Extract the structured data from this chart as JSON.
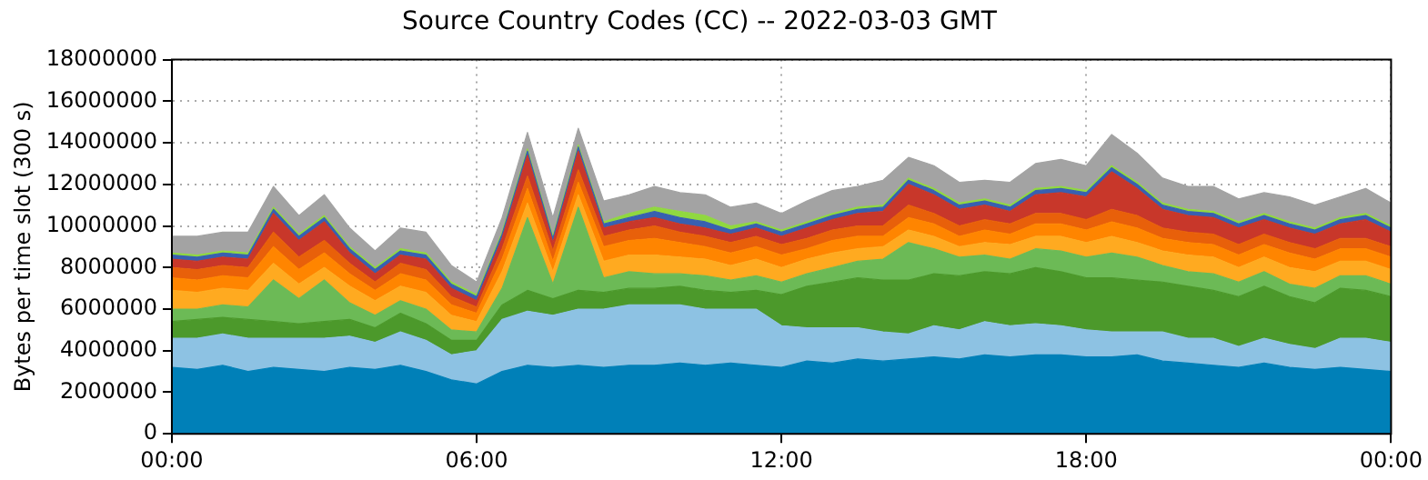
{
  "chart_data": {
    "type": "area",
    "title": "Source Country Codes (CC) -- 2022-03-03 GMT",
    "ylabel": "Bytes per time slot (300 s)",
    "stacked": true,
    "grid": true,
    "x": [
      0,
      0.5,
      1,
      1.5,
      2,
      2.5,
      3,
      3.5,
      4,
      4.5,
      5,
      5.5,
      6,
      6.5,
      7,
      7.5,
      8,
      8.5,
      9,
      9.5,
      10,
      10.5,
      11,
      11.5,
      12,
      12.5,
      13,
      13.5,
      14,
      14.5,
      15,
      15.5,
      16,
      16.5,
      17,
      17.5,
      18,
      18.5,
      19,
      19.5,
      20,
      20.5,
      21,
      21.5,
      22,
      22.5,
      23,
      23.5,
      24
    ],
    "xlim": [
      0,
      24
    ],
    "xticks": [
      {
        "value": 0,
        "label": "00:00"
      },
      {
        "value": 6,
        "label": "06:00"
      },
      {
        "value": 12,
        "label": "12:00"
      },
      {
        "value": 18,
        "label": "18:00"
      },
      {
        "value": 24,
        "label": "00:00"
      }
    ],
    "ylim": [
      0,
      18000000
    ],
    "yticks": [
      0,
      2000000,
      4000000,
      6000000,
      8000000,
      10000000,
      12000000,
      14000000,
      16000000,
      18000000
    ],
    "series": [
      {
        "color": "#0080b8",
        "values": [
          3200000.0,
          3100000.0,
          3300000.0,
          3000000.0,
          3200000.0,
          3100000.0,
          3000000.0,
          3200000.0,
          3100000.0,
          3300000.0,
          3000000.0,
          2600000.0,
          2400000.0,
          3000000.0,
          3300000.0,
          3200000.0,
          3300000.0,
          3200000.0,
          3300000.0,
          3300000.0,
          3400000.0,
          3300000.0,
          3400000.0,
          3300000.0,
          3200000.0,
          3500000.0,
          3400000.0,
          3600000.0,
          3500000.0,
          3600000.0,
          3700000.0,
          3600000.0,
          3800000.0,
          3700000.0,
          3800000.0,
          3800000.0,
          3700000.0,
          3700000.0,
          3800000.0,
          3500000.0,
          3400000.0,
          3300000.0,
          3200000.0,
          3400000.0,
          3200000.0,
          3100000.0,
          3200000.0,
          3100000.0,
          3000000.0
        ]
      },
      {
        "color": "#8dc2e3",
        "values": [
          1400000.0,
          1500000.0,
          1500000.0,
          1600000.0,
          1400000.0,
          1500000.0,
          1600000.0,
          1500000.0,
          1300000.0,
          1600000.0,
          1500000.0,
          1200000.0,
          1600000.0,
          2500000.0,
          2600000.0,
          2500000.0,
          2700000.0,
          2800000.0,
          2900000.0,
          2900000.0,
          2800000.0,
          2700000.0,
          2600000.0,
          2700000.0,
          2000000.0,
          1600000.0,
          1700000.0,
          1500000.0,
          1400000.0,
          1200000.0,
          1500000.0,
          1400000.0,
          1600000.0,
          1500000.0,
          1500000.0,
          1400000.0,
          1300000.0,
          1200000.0,
          1100000.0,
          1400000.0,
          1200000.0,
          1300000.0,
          1000000.0,
          1200000.0,
          1100000.0,
          1000000.0,
          1400000.0,
          1500000.0,
          1400000.0
        ]
      },
      {
        "color": "#4c992b",
        "values": [
          800000.0,
          900000.0,
          800000.0,
          900000.0,
          800000.0,
          700000.0,
          800000.0,
          800000.0,
          700000.0,
          900000.0,
          800000.0,
          700000.0,
          500000.0,
          700000.0,
          1000000.0,
          800000.0,
          900000.0,
          800000.0,
          800000.0,
          800000.0,
          900000.0,
          900000.0,
          800000.0,
          900000.0,
          1500000.0,
          2000000.0,
          2200000.0,
          2400000.0,
          2500000.0,
          2600000.0,
          2500000.0,
          2600000.0,
          2400000.0,
          2500000.0,
          2700000.0,
          2600000.0,
          2500000.0,
          2600000.0,
          2500000.0,
          2400000.0,
          2500000.0,
          2300000.0,
          2400000.0,
          2500000.0,
          2300000.0,
          2200000.0,
          2400000.0,
          2300000.0,
          2200000.0
        ]
      },
      {
        "color": "#6cba56",
        "values": [
          600000.0,
          500000.0,
          600000.0,
          600000.0,
          2000000.0,
          1200000.0,
          2000000.0,
          800000.0,
          600000.0,
          600000.0,
          700000.0,
          500000.0,
          400000.0,
          800000.0,
          3500000.0,
          700000.0,
          4000000.0,
          700000.0,
          800000.0,
          700000.0,
          600000.0,
          700000.0,
          600000.0,
          700000.0,
          600000.0,
          600000.0,
          700000.0,
          800000.0,
          1000000.0,
          1800000.0,
          1200000.0,
          900000.0,
          800000.0,
          700000.0,
          900000.0,
          1000000.0,
          1000000.0,
          1200000.0,
          1100000.0,
          800000.0,
          700000.0,
          800000.0,
          700000.0,
          700000.0,
          600000.0,
          700000.0,
          600000.0,
          700000.0,
          600000.0
        ]
      },
      {
        "color": "#ffaa20",
        "values": [
          900000.0,
          800000.0,
          800000.0,
          800000.0,
          800000.0,
          700000.0,
          600000.0,
          800000.0,
          700000.0,
          700000.0,
          800000.0,
          700000.0,
          500000.0,
          800000.0,
          700000.0,
          600000.0,
          600000.0,
          800000.0,
          800000.0,
          900000.0,
          800000.0,
          800000.0,
          700000.0,
          800000.0,
          700000.0,
          700000.0,
          700000.0,
          600000.0,
          600000.0,
          600000.0,
          600000.0,
          500000.0,
          600000.0,
          700000.0,
          600000.0,
          700000.0,
          700000.0,
          800000.0,
          700000.0,
          700000.0,
          800000.0,
          800000.0,
          700000.0,
          700000.0,
          800000.0,
          800000.0,
          700000.0,
          700000.0,
          700000.0
        ]
      },
      {
        "color": "#ff8500",
        "values": [
          600000.0,
          600000.0,
          600000.0,
          600000.0,
          800000.0,
          700000.0,
          700000.0,
          600000.0,
          500000.0,
          600000.0,
          600000.0,
          500000.0,
          400000.0,
          600000.0,
          700000.0,
          500000.0,
          600000.0,
          700000.0,
          700000.0,
          800000.0,
          700000.0,
          600000.0,
          600000.0,
          600000.0,
          600000.0,
          500000.0,
          600000.0,
          600000.0,
          500000.0,
          600000.0,
          600000.0,
          500000.0,
          600000.0,
          500000.0,
          600000.0,
          600000.0,
          600000.0,
          700000.0,
          700000.0,
          600000.0,
          600000.0,
          600000.0,
          600000.0,
          600000.0,
          700000.0,
          600000.0,
          600000.0,
          600000.0,
          600000.0
        ]
      },
      {
        "color": "#e8600a",
        "values": [
          500000.0,
          500000.0,
          500000.0,
          500000.0,
          700000.0,
          600000.0,
          600000.0,
          500000.0,
          400000.0,
          500000.0,
          500000.0,
          400000.0,
          300000.0,
          500000.0,
          600000.0,
          500000.0,
          600000.0,
          500000.0,
          500000.0,
          600000.0,
          500000.0,
          500000.0,
          500000.0,
          500000.0,
          500000.0,
          500000.0,
          500000.0,
          500000.0,
          500000.0,
          600000.0,
          500000.0,
          500000.0,
          500000.0,
          500000.0,
          500000.0,
          500000.0,
          500000.0,
          600000.0,
          600000.0,
          500000.0,
          500000.0,
          500000.0,
          500000.0,
          500000.0,
          500000.0,
          500000.0,
          500000.0,
          500000.0,
          500000.0
        ]
      },
      {
        "color": "#c8372a",
        "values": [
          400000.0,
          400000.0,
          400000.0,
          400000.0,
          900000.0,
          800000.0,
          900000.0,
          500000.0,
          400000.0,
          400000.0,
          500000.0,
          400000.0,
          300000.0,
          500000.0,
          1000000.0,
          400000.0,
          900000.0,
          400000.0,
          400000.0,
          400000.0,
          400000.0,
          400000.0,
          400000.0,
          400000.0,
          400000.0,
          500000.0,
          500000.0,
          600000.0,
          700000.0,
          1000000.0,
          900000.0,
          800000.0,
          700000.0,
          600000.0,
          900000.0,
          1000000.0,
          1100000.0,
          1800000.0,
          1300000.0,
          900000.0,
          800000.0,
          800000.0,
          800000.0,
          700000.0,
          700000.0,
          700000.0,
          700000.0,
          900000.0,
          700000.0
        ]
      },
      {
        "color": "#3860b0",
        "values": [
          200000.0,
          200000.0,
          200000.0,
          200000.0,
          200000.0,
          200000.0,
          200000.0,
          200000.0,
          200000.0,
          200000.0,
          200000.0,
          200000.0,
          200000.0,
          200000.0,
          200000.0,
          200000.0,
          200000.0,
          200000.0,
          200000.0,
          300000.0,
          300000.0,
          300000.0,
          200000.0,
          200000.0,
          200000.0,
          200000.0,
          200000.0,
          200000.0,
          200000.0,
          200000.0,
          200000.0,
          200000.0,
          200000.0,
          200000.0,
          200000.0,
          200000.0,
          200000.0,
          200000.0,
          200000.0,
          200000.0,
          200000.0,
          200000.0,
          200000.0,
          200000.0,
          200000.0,
          200000.0,
          200000.0,
          200000.0,
          200000.0
        ]
      },
      {
        "color": "#90d840",
        "values": [
          100000.0,
          100000.0,
          100000.0,
          100000.0,
          100000.0,
          100000.0,
          100000.0,
          100000.0,
          100000.0,
          100000.0,
          100000.0,
          100000.0,
          100000.0,
          100000.0,
          100000.0,
          100000.0,
          100000.0,
          100000.0,
          200000.0,
          200000.0,
          300000.0,
          300000.0,
          200000.0,
          100000.0,
          100000.0,
          100000.0,
          100000.0,
          100000.0,
          100000.0,
          100000.0,
          100000.0,
          100000.0,
          100000.0,
          100000.0,
          100000.0,
          100000.0,
          100000.0,
          100000.0,
          100000.0,
          100000.0,
          100000.0,
          100000.0,
          100000.0,
          100000.0,
          100000.0,
          100000.0,
          100000.0,
          100000.0,
          100000.0
        ]
      },
      {
        "color": "#a3a3a3",
        "values": [
          800000.0,
          900000.0,
          900000.0,
          1000000.0,
          1000000.0,
          900000.0,
          1000000.0,
          900000.0,
          800000.0,
          1000000.0,
          1000000.0,
          800000.0,
          600000.0,
          700000.0,
          800000.0,
          900000.0,
          800000.0,
          1000000.0,
          900000.0,
          1000000.0,
          900000.0,
          1000000.0,
          900000.0,
          900000.0,
          800000.0,
          1000000.0,
          1100000.0,
          1000000.0,
          1200000.0,
          1000000.0,
          1100000.0,
          1000000.0,
          900000.0,
          1100000.0,
          1200000.0,
          1300000.0,
          1200000.0,
          1500000.0,
          1400000.0,
          1200000.0,
          1100000.0,
          1200000.0,
          1100000.0,
          1000000.0,
          1200000.0,
          1100000.0,
          1000000.0,
          1200000.0,
          1100000.0
        ]
      }
    ]
  }
}
